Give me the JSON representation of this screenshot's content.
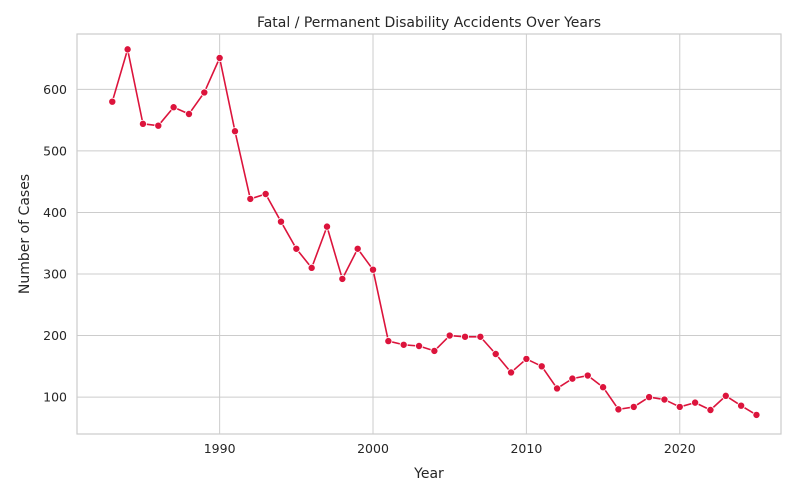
{
  "chart_data": {
    "type": "line",
    "title": "Fatal / Permanent Disability Accidents Over Years",
    "xlabel": "Year",
    "ylabel": "Number of Cases",
    "xlim": [
      1980.7,
      2026.6
    ],
    "ylim": [
      40,
      690
    ],
    "xticks": [
      1990,
      2000,
      2010,
      2020
    ],
    "yticks": [
      100,
      200,
      300,
      400,
      500,
      600
    ],
    "grid": true,
    "line_color": "#dc143c",
    "series": [
      {
        "x": [
          1983,
          1984,
          1985,
          1986,
          1987,
          1988,
          1989,
          1990,
          1991,
          1992,
          1993,
          1994,
          1995,
          1996,
          1997,
          1998,
          1999,
          2000,
          2001,
          2002,
          2003,
          2004,
          2005,
          2006,
          2007,
          2008,
          2009,
          2010,
          2011,
          2012,
          2013,
          2014,
          2015,
          2016,
          2017,
          2018,
          2019,
          2020,
          2021,
          2022,
          2023,
          2024,
          2025
        ],
        "values": [
          580,
          665,
          544,
          541,
          571,
          560,
          595,
          651,
          532,
          422,
          430,
          385,
          341,
          310,
          377,
          292,
          341,
          307,
          191,
          185,
          183,
          175,
          200,
          198,
          198,
          170,
          140,
          162,
          150,
          114,
          130,
          135,
          116,
          80,
          84,
          100,
          96,
          84,
          91,
          79,
          102,
          86,
          71
        ]
      }
    ]
  }
}
